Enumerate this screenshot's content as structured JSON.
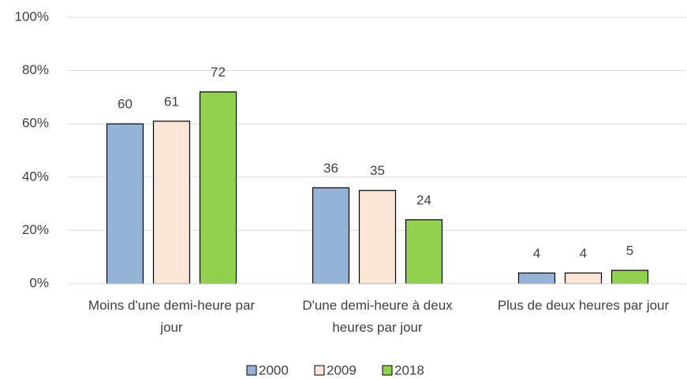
{
  "chart_data": {
    "type": "bar",
    "categories": [
      "Moins d'une demi-heure par jour",
      "D'une demi-heure à deux heures par jour",
      "Plus de deux heures par jour"
    ],
    "series": [
      {
        "name": "2000",
        "color": "#95b3d7",
        "values": [
          60,
          36,
          4
        ]
      },
      {
        "name": "2009",
        "color": "#fbe5d6",
        "values": [
          61,
          35,
          4
        ]
      },
      {
        "name": "2018",
        "color": "#92d050",
        "values": [
          72,
          24,
          5
        ]
      }
    ],
    "ylim": [
      0,
      100
    ],
    "yticks": [
      {
        "value": 0,
        "label": "0%"
      },
      {
        "value": 20,
        "label": "20%"
      },
      {
        "value": 40,
        "label": "40%"
      },
      {
        "value": 60,
        "label": "60%"
      },
      {
        "value": 80,
        "label": "80%"
      },
      {
        "value": 100,
        "label": "100%"
      }
    ],
    "grid": true,
    "legend": "bottom"
  }
}
